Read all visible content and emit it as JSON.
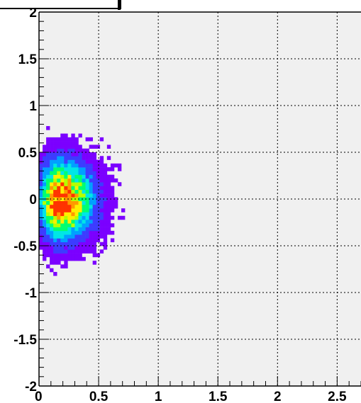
{
  "chart_data": {
    "type": "heatmap",
    "title": "",
    "xlabel": "",
    "ylabel": "",
    "xlim": [
      0,
      2.7
    ],
    "ylim": [
      -2,
      2
    ],
    "x_ticks": [
      "0",
      "0.5",
      "1",
      "1.5",
      "2",
      "2.5"
    ],
    "y_ticks": [
      "-2",
      "-1.5",
      "-1",
      "-0.5",
      "0",
      "0.5",
      "1",
      "1.5",
      "2"
    ],
    "grid": true,
    "plot_background": "#f0f0f0",
    "colormap": [
      "#7b00ff",
      "#3c3cff",
      "#00a0ff",
      "#00e6e6",
      "#00ff70",
      "#b4ff00",
      "#ffee00",
      "#ff9900",
      "#ff3300"
    ],
    "bin_size": [
      0.03,
      0.04
    ],
    "density_peak": {
      "x": 0.17,
      "y": -0.01
    },
    "spread": {
      "x_core": 0.09,
      "x_tail": 0.16,
      "y": 0.23
    },
    "extent": {
      "x": [
        0.0,
        0.7
      ],
      "y": [
        -0.82,
        0.82
      ]
    }
  }
}
